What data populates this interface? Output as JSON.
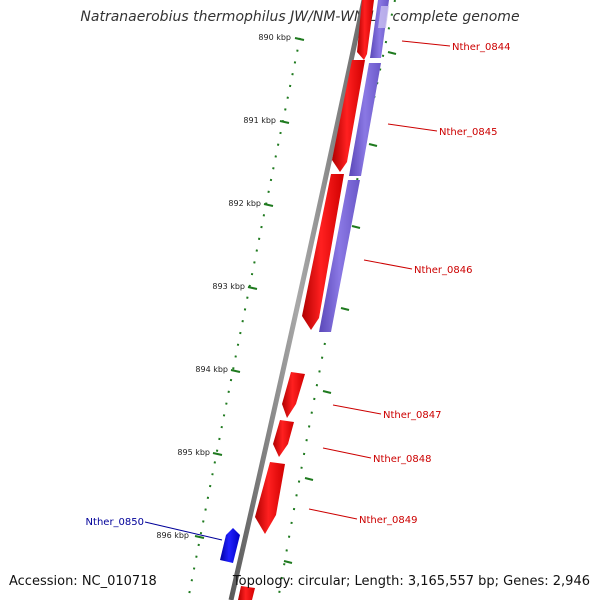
{
  "title": "Natranaerobius thermophilus JW/NM-WN-LF, complete genome",
  "footer": {
    "accession": "Accession: NC_010718",
    "topology": "Topology: circular; Length: 3,165,557 bp; Genes: 2,946"
  },
  "scale": {
    "ticks": [
      {
        "label": "890 kbp",
        "kbp": 890
      },
      {
        "label": "891 kbp",
        "kbp": 891
      },
      {
        "label": "892 kbp",
        "kbp": 892
      },
      {
        "label": "893 kbp",
        "kbp": 893
      },
      {
        "label": "894 kbp",
        "kbp": 894
      },
      {
        "label": "895 kbp",
        "kbp": 895
      },
      {
        "label": "896 kbp",
        "kbp": 896
      }
    ]
  },
  "genes": [
    {
      "name": "Nther_0844",
      "strand": "forward"
    },
    {
      "name": "Nther_0845",
      "strand": "forward"
    },
    {
      "name": "Nther_0846",
      "strand": "forward"
    },
    {
      "name": "Nther_0847",
      "strand": "forward"
    },
    {
      "name": "Nther_0848",
      "strand": "forward"
    },
    {
      "name": "Nther_0849",
      "strand": "forward"
    },
    {
      "name": "Nther_0850",
      "strand": "reverse"
    }
  ],
  "colors": {
    "forward_gene": "#ff1a1a",
    "reverse_gene": "#1a1aff",
    "orf_track": "#7b68d6",
    "backbone": "#808080",
    "tick": "#1f7a1f",
    "forward_label": "#cc0000",
    "reverse_label": "#000099"
  }
}
